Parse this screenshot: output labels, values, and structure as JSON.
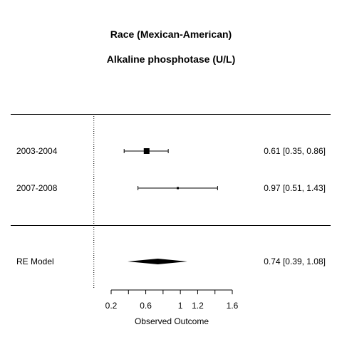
{
  "chart_data": {
    "type": "forest",
    "title": "Race (Mexican-American)",
    "subtitle": "Alkaline phosphotase (U/L)",
    "xlabel": "Observed Outcome",
    "xlim": [
      0.2,
      1.6
    ],
    "xticks": [
      0.2,
      0.6,
      1,
      1.2,
      1.6
    ],
    "xtick_labels": [
      "0.2",
      "0.6",
      "1",
      "1.2",
      "1.6"
    ],
    "reference_line": 0,
    "studies": [
      {
        "label": "2003-2004",
        "estimate": 0.61,
        "lower": 0.35,
        "upper": 0.86,
        "text": "0.61 [0.35, 0.86]",
        "weight": "large"
      },
      {
        "label": "2007-2008",
        "estimate": 0.97,
        "lower": 0.51,
        "upper": 1.43,
        "text": "0.97 [0.51, 1.43]",
        "weight": "small"
      }
    ],
    "summary": {
      "label": "RE Model",
      "estimate": 0.74,
      "lower": 0.39,
      "upper": 1.08,
      "text": "0.74 [0.39, 1.08]"
    }
  }
}
